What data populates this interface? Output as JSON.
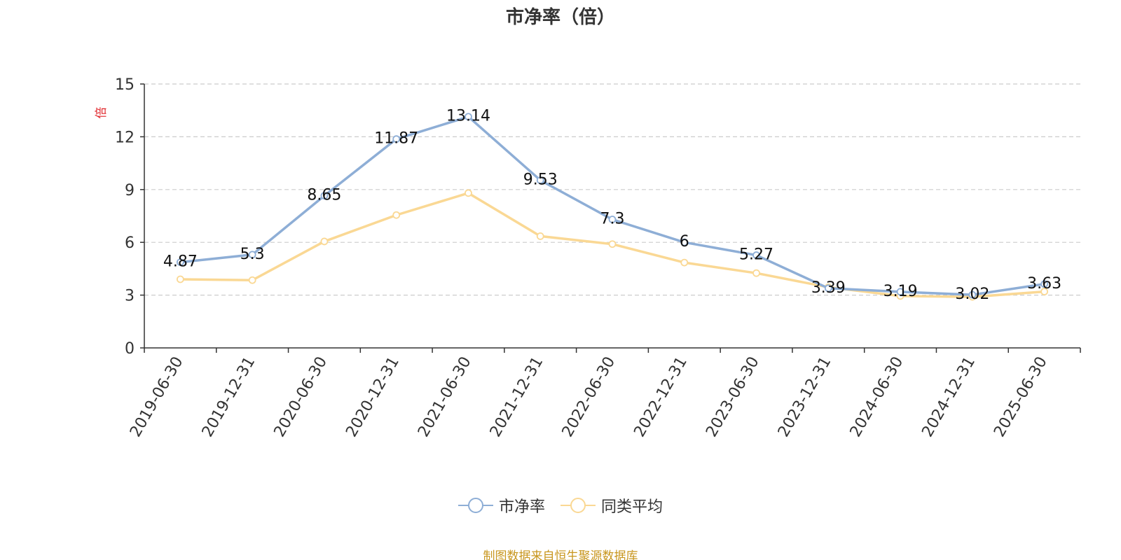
{
  "title": "市净率（倍）",
  "source_note": "制图数据来自恒生聚源数据库",
  "colors": {
    "series1": "#8eaed6",
    "series2": "#fad894",
    "unit_label": "#e0252a",
    "source_note": "#c8961e",
    "grid": "#cccccc",
    "axis": "#333333"
  },
  "chart_data": {
    "type": "line",
    "title": "市净率（倍）",
    "ylabel": "倍",
    "xlabel": "",
    "categories": [
      "2019-06-30",
      "2019-12-31",
      "2020-06-30",
      "2020-12-31",
      "2021-06-30",
      "2021-12-31",
      "2022-06-30",
      "2022-12-31",
      "2023-06-30",
      "2023-12-31",
      "2024-06-30",
      "2024-12-31",
      "2025-06-30"
    ],
    "ylim": [
      0,
      15
    ],
    "yticks": [
      0,
      3,
      6,
      9,
      12,
      15
    ],
    "grid": true,
    "legend_position": "bottom",
    "series": [
      {
        "name": "市净率",
        "values": [
          4.87,
          5.3,
          8.65,
          11.87,
          13.14,
          9.53,
          7.3,
          6,
          5.27,
          3.39,
          3.19,
          3.02,
          3.63
        ],
        "labels": [
          "4.87",
          "5.3",
          "8.65",
          "11.87",
          "13.14",
          "9.53",
          "7.3",
          "6",
          "5.27",
          "3.39",
          "3.19",
          "3.02",
          "3.63"
        ]
      },
      {
        "name": "同类平均",
        "values": [
          3.9,
          3.85,
          6.05,
          7.55,
          8.8,
          6.35,
          5.9,
          4.85,
          4.25,
          3.45,
          2.95,
          2.9,
          3.2
        ]
      }
    ]
  }
}
